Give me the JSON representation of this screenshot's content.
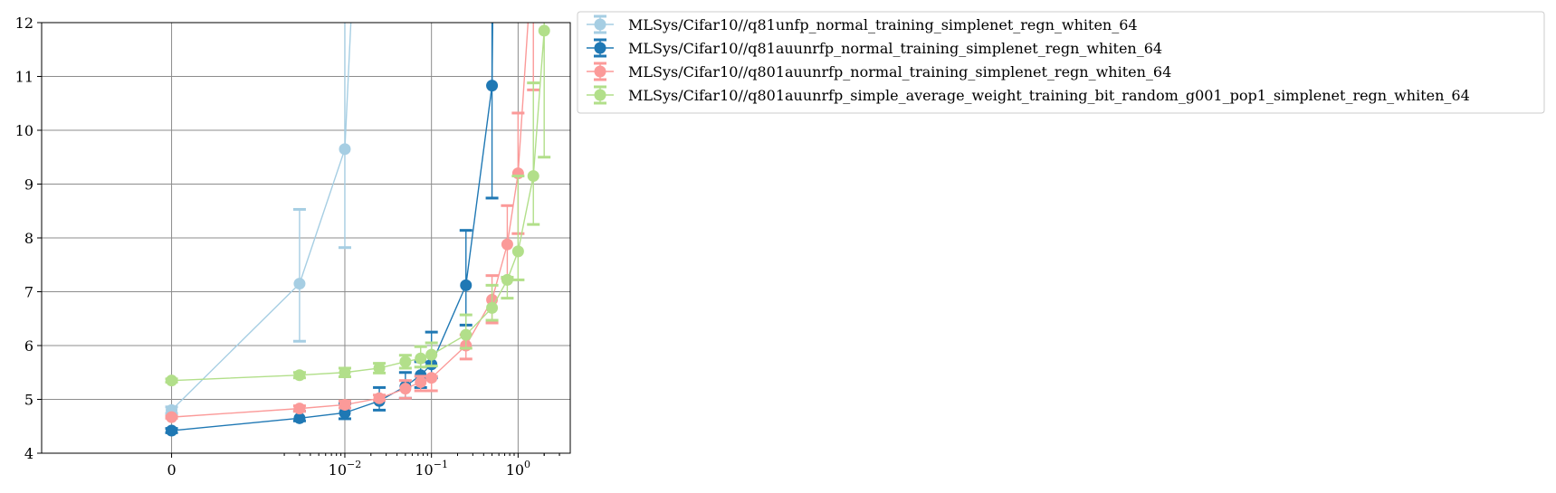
{
  "chart_data": {
    "type": "line",
    "title": "",
    "xlabel": "",
    "ylabel": "",
    "x_scale": "symlog",
    "x_tick_labels": [
      {
        "value": 0,
        "label": "0"
      },
      {
        "value": 0.01,
        "label": "10",
        "exp": "−2"
      },
      {
        "value": 0.1,
        "label": "10",
        "exp": "−1"
      },
      {
        "value": 1,
        "label": "10",
        "exp": "0"
      }
    ],
    "xlim": [
      -0.0015,
      4
    ],
    "ylim": [
      4,
      12
    ],
    "y_ticks": [
      4,
      5,
      6,
      7,
      8,
      9,
      10,
      11,
      12
    ],
    "grid": true,
    "legend_position": "outside right, top",
    "series": [
      {
        "name": "MLSys/Cifar10//q81unfp_normal_training_simplenet_regn_whiten_64",
        "color": "#a6cee3",
        "points": [
          {
            "x": 0,
            "y": 4.8,
            "lo": 4.74,
            "hi": 4.86
          },
          {
            "x": 0.003,
            "y": 7.15,
            "lo": 6.08,
            "hi": 8.53
          },
          {
            "x": 0.01,
            "y": 9.65,
            "lo": 7.82,
            "hi": 13.5
          },
          {
            "x": 0.013,
            "y": 13.5
          }
        ]
      },
      {
        "name": "MLSys/Cifar10//q81auunrfp_normal_training_simplenet_regn_whiten_64",
        "color": "#1f78b4",
        "points": [
          {
            "x": 0,
            "y": 4.42,
            "lo": 4.38,
            "hi": 4.46
          },
          {
            "x": 0.003,
            "y": 4.65,
            "lo": 4.6,
            "hi": 4.78
          },
          {
            "x": 0.01,
            "y": 4.75,
            "lo": 4.64,
            "hi": 4.92
          },
          {
            "x": 0.025,
            "y": 4.97,
            "lo": 4.8,
            "hi": 5.22
          },
          {
            "x": 0.05,
            "y": 5.24,
            "lo": 5.02,
            "hi": 5.5
          },
          {
            "x": 0.075,
            "y": 5.45,
            "lo": 5.22,
            "hi": 5.7
          },
          {
            "x": 0.1,
            "y": 5.65,
            "lo": 5.4,
            "hi": 6.25
          },
          {
            "x": 0.25,
            "y": 7.12,
            "lo": 6.38,
            "hi": 8.14
          },
          {
            "x": 0.5,
            "y": 10.83,
            "lo": 8.74,
            "hi": 13.5
          },
          {
            "x": 0.52,
            "y": 13.5
          }
        ]
      },
      {
        "name": "MLSys/Cifar10//q801auunrfp_normal_training_simplenet_regn_whiten_64",
        "color": "#fb9a99",
        "points": [
          {
            "x": 0,
            "y": 4.67,
            "lo": 4.65,
            "hi": 4.69
          },
          {
            "x": 0.003,
            "y": 4.83,
            "lo": 4.78,
            "hi": 4.88
          },
          {
            "x": 0.01,
            "y": 4.9,
            "lo": 4.84,
            "hi": 4.97
          },
          {
            "x": 0.025,
            "y": 5.02,
            "lo": 4.98,
            "hi": 5.08
          },
          {
            "x": 0.05,
            "y": 5.2,
            "lo": 5.02,
            "hi": 5.35
          },
          {
            "x": 0.075,
            "y": 5.32,
            "lo": 5.16,
            "hi": 5.43
          },
          {
            "x": 0.1,
            "y": 5.4,
            "lo": 5.16,
            "hi": 5.43
          },
          {
            "x": 0.25,
            "y": 6.0,
            "lo": 5.75,
            "hi": 6.2
          },
          {
            "x": 0.5,
            "y": 6.85,
            "lo": 6.42,
            "hi": 7.3
          },
          {
            "x": 0.75,
            "y": 7.88,
            "lo": 7.25,
            "hi": 8.6
          },
          {
            "x": 1.0,
            "y": 9.2,
            "lo": 8.08,
            "hi": 10.32
          },
          {
            "x": 1.5,
            "y": 13.5,
            "lo": 10.75,
            "hi": 13.5
          }
        ]
      },
      {
        "name": "MLSys/Cifar10//q801auunrfp_simple_average_weight_training_bit_random_g001_pop1_simplenet_regn_whiten_64",
        "color": "#b2df8a",
        "points": [
          {
            "x": 0,
            "y": 5.35,
            "lo": 5.32,
            "hi": 5.38
          },
          {
            "x": 0.003,
            "y": 5.45,
            "lo": 5.4,
            "hi": 5.5
          },
          {
            "x": 0.01,
            "y": 5.5,
            "lo": 5.42,
            "hi": 5.58
          },
          {
            "x": 0.025,
            "y": 5.58,
            "lo": 5.49,
            "hi": 5.67
          },
          {
            "x": 0.05,
            "y": 5.7,
            "lo": 5.58,
            "hi": 5.82
          },
          {
            "x": 0.075,
            "y": 5.76,
            "lo": 5.6,
            "hi": 5.98
          },
          {
            "x": 0.1,
            "y": 5.83,
            "lo": 5.62,
            "hi": 6.05
          },
          {
            "x": 0.25,
            "y": 6.2,
            "lo": 5.95,
            "hi": 6.57
          },
          {
            "x": 0.5,
            "y": 6.7,
            "lo": 6.47,
            "hi": 7.12
          },
          {
            "x": 0.75,
            "y": 7.22,
            "lo": 6.88,
            "hi": 7.27
          },
          {
            "x": 1.0,
            "y": 7.75,
            "lo": 7.22,
            "hi": 9.15
          },
          {
            "x": 1.5,
            "y": 9.15,
            "lo": 8.25,
            "hi": 10.88
          },
          {
            "x": 2.0,
            "y": 11.85,
            "lo": 9.5,
            "hi": 13.5
          }
        ]
      }
    ]
  }
}
